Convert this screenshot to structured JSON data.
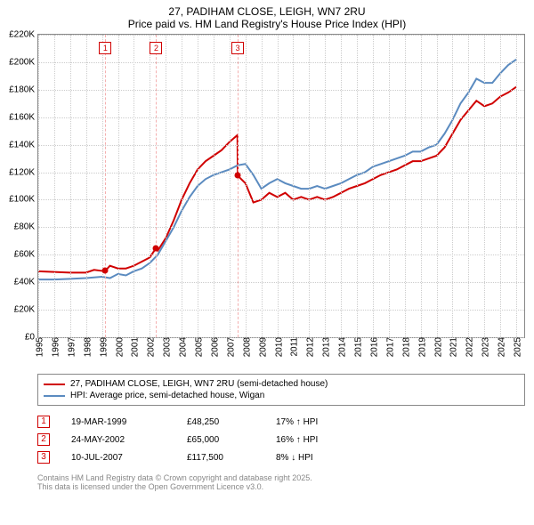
{
  "title_line1": "27, PADIHAM CLOSE, LEIGH, WN7 2RU",
  "title_line2": "Price paid vs. HM Land Registry's House Price Index (HPI)",
  "chart": {
    "type": "line",
    "background_color": "#ffffff",
    "border_color": "#888888",
    "grid_color": "#cccccc",
    "x_years": [
      1995,
      1996,
      1997,
      1998,
      1999,
      2000,
      2001,
      2002,
      2003,
      2004,
      2005,
      2006,
      2007,
      2008,
      2009,
      2010,
      2011,
      2012,
      2013,
      2014,
      2015,
      2016,
      2017,
      2018,
      2019,
      2020,
      2021,
      2022,
      2023,
      2024,
      2025
    ],
    "x_min": 1995,
    "x_max": 2025.5,
    "y_min": 0,
    "y_max": 220000,
    "y_tick_step": 20000,
    "y_tick_labels": [
      "£0",
      "£20K",
      "£40K",
      "£60K",
      "£80K",
      "£100K",
      "£120K",
      "£140K",
      "£160K",
      "£180K",
      "£200K",
      "£220K"
    ],
    "series": [
      {
        "name": "27, PADIHAM CLOSE, LEIGH, WN7 2RU (semi-detached house)",
        "color": "#d00000",
        "line_width": 2,
        "points": [
          [
            1995,
            48000
          ],
          [
            1996,
            47500
          ],
          [
            1997,
            47000
          ],
          [
            1998,
            47000
          ],
          [
            1998.5,
            49000
          ],
          [
            1999,
            48250
          ],
          [
            1999.2,
            48250
          ],
          [
            1999.5,
            52000
          ],
          [
            2000,
            50000
          ],
          [
            2000.5,
            50000
          ],
          [
            2001,
            52000
          ],
          [
            2001.5,
            55000
          ],
          [
            2002,
            58000
          ],
          [
            2002.4,
            65000
          ],
          [
            2002.5,
            63000
          ],
          [
            2003,
            72000
          ],
          [
            2003.5,
            85000
          ],
          [
            2004,
            100000
          ],
          [
            2004.5,
            112000
          ],
          [
            2005,
            122000
          ],
          [
            2005.5,
            128000
          ],
          [
            2006,
            132000
          ],
          [
            2006.5,
            136000
          ],
          [
            2007,
            142000
          ],
          [
            2007.5,
            147000
          ],
          [
            2007.52,
            117500
          ],
          [
            2008,
            112000
          ],
          [
            2008.5,
            98000
          ],
          [
            2009,
            100000
          ],
          [
            2009.5,
            105000
          ],
          [
            2010,
            102000
          ],
          [
            2010.5,
            105000
          ],
          [
            2011,
            100000
          ],
          [
            2011.5,
            102000
          ],
          [
            2012,
            100000
          ],
          [
            2012.5,
            102000
          ],
          [
            2013,
            100000
          ],
          [
            2013.5,
            102000
          ],
          [
            2014,
            105000
          ],
          [
            2014.5,
            108000
          ],
          [
            2015,
            110000
          ],
          [
            2015.5,
            112000
          ],
          [
            2016,
            115000
          ],
          [
            2016.5,
            118000
          ],
          [
            2017,
            120000
          ],
          [
            2017.5,
            122000
          ],
          [
            2018,
            125000
          ],
          [
            2018.5,
            128000
          ],
          [
            2019,
            128000
          ],
          [
            2019.5,
            130000
          ],
          [
            2020,
            132000
          ],
          [
            2020.5,
            138000
          ],
          [
            2021,
            148000
          ],
          [
            2021.5,
            158000
          ],
          [
            2022,
            165000
          ],
          [
            2022.5,
            172000
          ],
          [
            2023,
            168000
          ],
          [
            2023.5,
            170000
          ],
          [
            2024,
            175000
          ],
          [
            2024.5,
            178000
          ],
          [
            2025,
            182000
          ]
        ]
      },
      {
        "name": "HPI: Average price, semi-detached house, Wigan",
        "color": "#5b8bc0",
        "line_width": 2,
        "points": [
          [
            1995,
            42000
          ],
          [
            1996,
            42000
          ],
          [
            1997,
            42500
          ],
          [
            1998,
            43000
          ],
          [
            1999,
            44000
          ],
          [
            1999.5,
            43000
          ],
          [
            2000,
            46000
          ],
          [
            2000.5,
            45000
          ],
          [
            2001,
            48000
          ],
          [
            2001.5,
            50000
          ],
          [
            2002,
            54000
          ],
          [
            2002.5,
            60000
          ],
          [
            2003,
            70000
          ],
          [
            2003.5,
            80000
          ],
          [
            2004,
            92000
          ],
          [
            2004.5,
            102000
          ],
          [
            2005,
            110000
          ],
          [
            2005.5,
            115000
          ],
          [
            2006,
            118000
          ],
          [
            2006.5,
            120000
          ],
          [
            2007,
            122000
          ],
          [
            2007.5,
            125000
          ],
          [
            2008,
            126000
          ],
          [
            2008.5,
            118000
          ],
          [
            2009,
            108000
          ],
          [
            2009.5,
            112000
          ],
          [
            2010,
            115000
          ],
          [
            2010.5,
            112000
          ],
          [
            2011,
            110000
          ],
          [
            2011.5,
            108000
          ],
          [
            2012,
            108000
          ],
          [
            2012.5,
            110000
          ],
          [
            2013,
            108000
          ],
          [
            2013.5,
            110000
          ],
          [
            2014,
            112000
          ],
          [
            2014.5,
            115000
          ],
          [
            2015,
            118000
          ],
          [
            2015.5,
            120000
          ],
          [
            2016,
            124000
          ],
          [
            2016.5,
            126000
          ],
          [
            2017,
            128000
          ],
          [
            2017.5,
            130000
          ],
          [
            2018,
            132000
          ],
          [
            2018.5,
            135000
          ],
          [
            2019,
            135000
          ],
          [
            2019.5,
            138000
          ],
          [
            2020,
            140000
          ],
          [
            2020.5,
            148000
          ],
          [
            2021,
            158000
          ],
          [
            2021.5,
            170000
          ],
          [
            2022,
            178000
          ],
          [
            2022.5,
            188000
          ],
          [
            2023,
            185000
          ],
          [
            2023.5,
            185000
          ],
          [
            2024,
            192000
          ],
          [
            2024.5,
            198000
          ],
          [
            2025,
            202000
          ]
        ]
      }
    ],
    "markers": [
      {
        "n": "1",
        "x": 1999.21,
        "color": "#f4b0b0",
        "dot_x": 1999.21,
        "dot_y": 48250,
        "dot_color": "#d00000"
      },
      {
        "n": "2",
        "x": 2002.4,
        "color": "#f4b0b0",
        "dot_x": 2002.4,
        "dot_y": 65000,
        "dot_color": "#d00000"
      },
      {
        "n": "3",
        "x": 2007.52,
        "color": "#f4b0b0",
        "dot_x": 2007.52,
        "dot_y": 117500,
        "dot_color": "#d00000"
      }
    ]
  },
  "legend": [
    {
      "color": "#d00000",
      "label": "27, PADIHAM CLOSE, LEIGH, WN7 2RU (semi-detached house)"
    },
    {
      "color": "#5b8bc0",
      "label": "HPI: Average price, semi-detached house, Wigan"
    }
  ],
  "sales": [
    {
      "n": "1",
      "date": "19-MAR-1999",
      "price": "£48,250",
      "diff": "17% ↑ HPI"
    },
    {
      "n": "2",
      "date": "24-MAY-2002",
      "price": "£65,000",
      "diff": "16% ↑ HPI"
    },
    {
      "n": "3",
      "date": "10-JUL-2007",
      "price": "£117,500",
      "diff": "8% ↓ HPI"
    }
  ],
  "footnote_line1": "Contains HM Land Registry data © Crown copyright and database right 2025.",
  "footnote_line2": "This data is licensed under the Open Government Licence v3.0."
}
